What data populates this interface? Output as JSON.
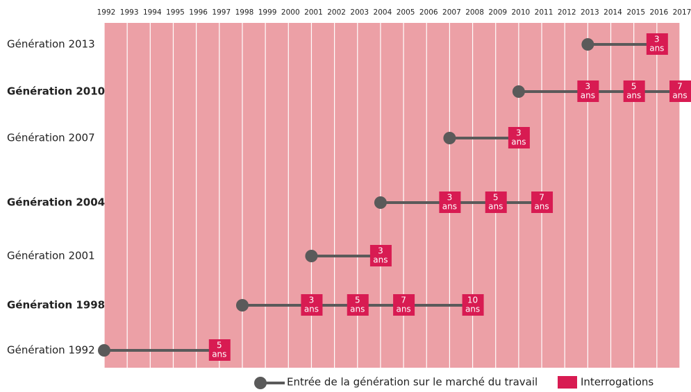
{
  "chart_data": {
    "type": "timeline",
    "xlim": [
      1992,
      2017
    ],
    "xticks": [
      1992,
      1993,
      1994,
      1995,
      1996,
      1997,
      1998,
      1999,
      2000,
      2001,
      2002,
      2003,
      2004,
      2005,
      2006,
      2007,
      2008,
      2009,
      2010,
      2011,
      2012,
      2013,
      2014,
      2015,
      2016,
      2017
    ],
    "unit": "ans",
    "background_color": "#eca0a6",
    "line_color": "#5a5a5a",
    "box_color": "#d81b52",
    "series": [
      {
        "name": "Génération 2013",
        "bold": false,
        "start": 2013,
        "surveys": [
          3
        ]
      },
      {
        "name": "Génération 2010",
        "bold": true,
        "start": 2010,
        "surveys": [
          3,
          5,
          7
        ]
      },
      {
        "name": "Génération 2007",
        "bold": false,
        "start": 2007,
        "surveys": [
          3
        ]
      },
      {
        "name": "Génération 2004",
        "bold": true,
        "start": 2004,
        "surveys": [
          3,
          5,
          7
        ]
      },
      {
        "name": "Génération 2001",
        "bold": false,
        "start": 2001,
        "surveys": [
          3
        ]
      },
      {
        "name": "Génération 1998",
        "bold": true,
        "start": 1998,
        "surveys": [
          3,
          5,
          7,
          10
        ]
      },
      {
        "name": "Génération 1992",
        "bold": false,
        "start": 1992,
        "surveys": [
          5
        ]
      }
    ],
    "legend": {
      "start": "Entrée de la génération sur le marché du travail",
      "surveys": "Interrogations"
    }
  }
}
